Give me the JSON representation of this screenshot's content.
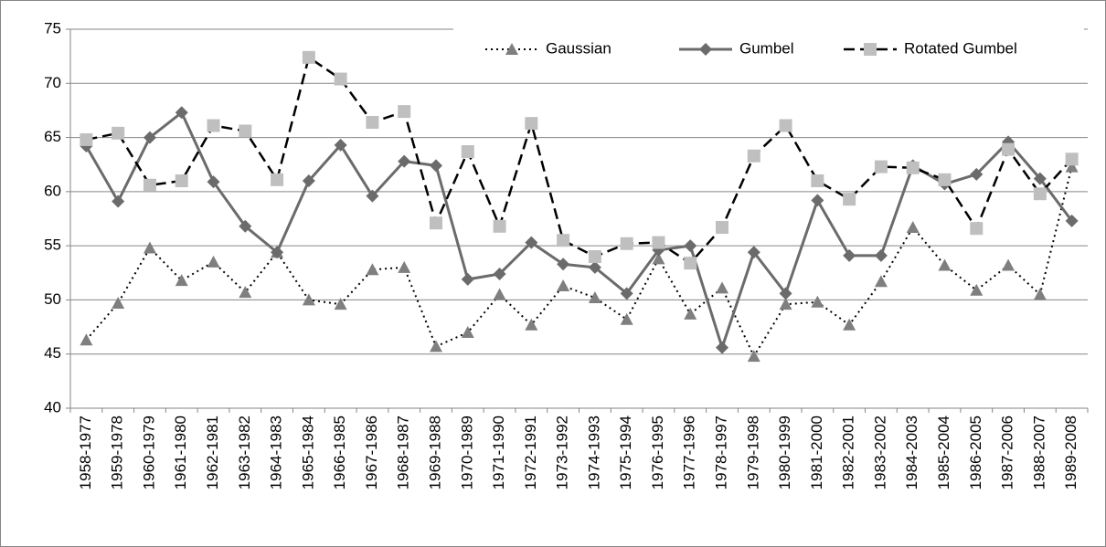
{
  "chart_data": {
    "type": "line",
    "categories": [
      "1958-1977",
      "1959-1978",
      "1960-1979",
      "1961-1980",
      "1962-1981",
      "1963-1982",
      "1964-1983",
      "1965-1984",
      "1966-1985",
      "1967-1986",
      "1968-1987",
      "1969-1988",
      "1970-1989",
      "1971-1990",
      "1972-1991",
      "1973-1992",
      "1974-1993",
      "1975-1994",
      "1976-1995",
      "1977-1996",
      "1978-1997",
      "1979-1998",
      "1980-1999",
      "1981-2000",
      "1982-2001",
      "1983-2002",
      "1984-2003",
      "1985-2004",
      "1986-2005",
      "1987-2006",
      "1988-2007",
      "1989-2008"
    ],
    "series": [
      {
        "name": "Gaussian",
        "color": "#7f7f7f",
        "values": [
          46.3,
          49.7,
          54.8,
          51.8,
          53.5,
          50.7,
          54.4,
          50.0,
          49.6,
          52.8,
          53.0,
          45.7,
          47.0,
          50.5,
          47.7,
          51.3,
          50.2,
          48.2,
          53.8,
          48.7,
          51.1,
          44.8,
          49.6,
          49.8,
          47.7,
          51.7,
          56.7,
          53.2,
          50.9,
          53.2,
          50.5,
          62.3
        ]
      },
      {
        "name": "Gumbel",
        "color": "#6b6b6b",
        "values": [
          64.2,
          59.1,
          65.0,
          67.3,
          60.9,
          56.8,
          54.4,
          61.0,
          64.3,
          59.6,
          62.8,
          62.4,
          51.9,
          52.4,
          55.3,
          53.3,
          53.0,
          50.6,
          54.6,
          55.0,
          45.6,
          54.4,
          50.6,
          59.2,
          54.1,
          54.1,
          62.4,
          60.7,
          61.6,
          64.6,
          61.2,
          57.3
        ]
      },
      {
        "name": "Rotated Gumbel",
        "color": "#bfbfbf",
        "values": [
          64.8,
          65.4,
          60.6,
          61.0,
          66.1,
          65.6,
          61.1,
          72.4,
          70.4,
          66.4,
          67.4,
          57.1,
          63.7,
          56.8,
          66.3,
          55.5,
          54.0,
          55.2,
          55.3,
          53.4,
          56.7,
          63.3,
          66.1,
          61.0,
          59.3,
          62.3,
          62.2,
          61.1,
          56.6,
          63.9,
          59.8,
          63.0
        ]
      }
    ],
    "ylim": [
      40,
      75
    ],
    "yticks": [
      40,
      45,
      50,
      55,
      60,
      65,
      70,
      75
    ],
    "grid": true,
    "legend": "top-right"
  }
}
